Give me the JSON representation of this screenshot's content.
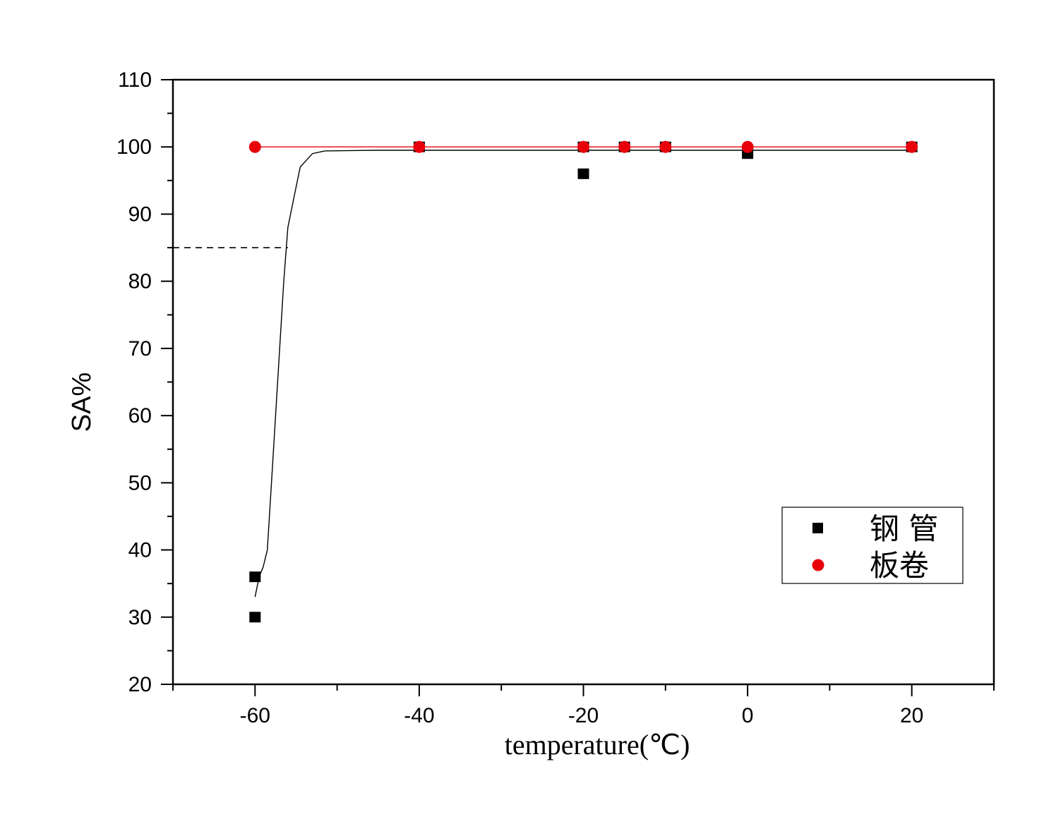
{
  "chart_data": {
    "type": "scatter",
    "xlabel": "temperature(℃)",
    "ylabel": "SA%",
    "xlim": [
      -70,
      30
    ],
    "ylim": [
      20,
      110
    ],
    "x_ticks": [
      -60,
      -40,
      -20,
      0,
      20
    ],
    "y_ticks": [
      20,
      30,
      40,
      50,
      60,
      70,
      80,
      90,
      100,
      110
    ],
    "grid": false,
    "legend_position": "bottom-right",
    "series": [
      {
        "name": "钢 管",
        "marker": "square",
        "color": "#000000",
        "points": [
          {
            "x": -60,
            "y": 36
          },
          {
            "x": -60,
            "y": 30
          },
          {
            "x": -40,
            "y": 100
          },
          {
            "x": -20,
            "y": 100
          },
          {
            "x": -20,
            "y": 96
          },
          {
            "x": -15,
            "y": 100
          },
          {
            "x": -10,
            "y": 100
          },
          {
            "x": 0,
            "y": 99
          },
          {
            "x": 20,
            "y": 100
          }
        ],
        "fit_line": {
          "color": "#000000",
          "points": [
            {
              "x": -60,
              "y": 33
            },
            {
              "x": -59.5,
              "y": 36
            },
            {
              "x": -59,
              "y": 37.5
            },
            {
              "x": -58.5,
              "y": 40
            },
            {
              "x": -58,
              "y": 50
            },
            {
              "x": -57.5,
              "y": 60
            },
            {
              "x": -57,
              "y": 70
            },
            {
              "x": -56.5,
              "y": 80
            },
            {
              "x": -56,
              "y": 88
            },
            {
              "x": -55,
              "y": 94
            },
            {
              "x": -54.5,
              "y": 97
            },
            {
              "x": -53,
              "y": 99
            },
            {
              "x": -51.5,
              "y": 99.4
            },
            {
              "x": -45,
              "y": 99.5
            },
            {
              "x": 20,
              "y": 99.5
            }
          ]
        }
      },
      {
        "name": "板卷",
        "marker": "circle",
        "color": "#e8000b",
        "points": [
          {
            "x": -60,
            "y": 100
          },
          {
            "x": -40,
            "y": 100
          },
          {
            "x": -20,
            "y": 100
          },
          {
            "x": -15,
            "y": 100
          },
          {
            "x": -10,
            "y": 100
          },
          {
            "x": 0,
            "y": 100
          },
          {
            "x": 20,
            "y": 100
          }
        ],
        "fit_line": {
          "color": "#e8000b",
          "points": [
            {
              "x": -60,
              "y": 100
            },
            {
              "x": 20,
              "y": 100
            }
          ]
        }
      }
    ],
    "reference_line": {
      "style": "dashed",
      "y": 85,
      "x_from": -70,
      "x_to": -56
    }
  }
}
